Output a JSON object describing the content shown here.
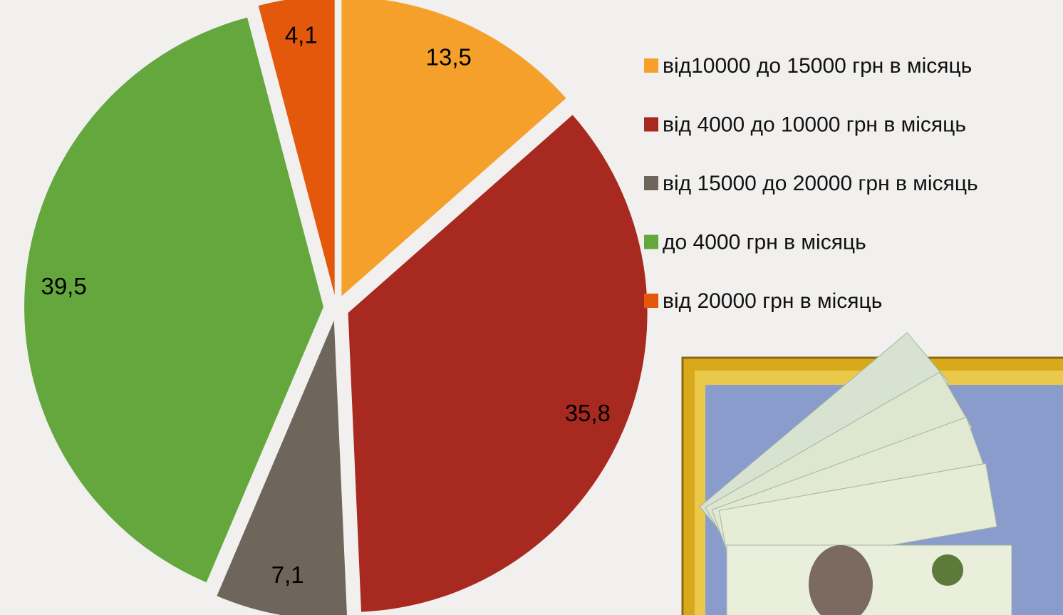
{
  "chart_data": {
    "type": "pie",
    "categories": [
      "від10000 до 15000 грн в місяць",
      "від 4000 до 10000 грн в місяць",
      "від 15000 до 20000 грн в місяць",
      "до 4000 грн в місяць",
      "від 20000 грн в місяць"
    ],
    "values": [
      13.5,
      35.8,
      7.1,
      39.5,
      4.1
    ],
    "value_labels": [
      "13,5",
      "35,8",
      "7,1",
      "39,5",
      "4,1"
    ],
    "colors": [
      "#f5a02a",
      "#a8291f",
      "#6e665a",
      "#64a83d",
      "#e4580c"
    ],
    "legend": "right"
  }
}
